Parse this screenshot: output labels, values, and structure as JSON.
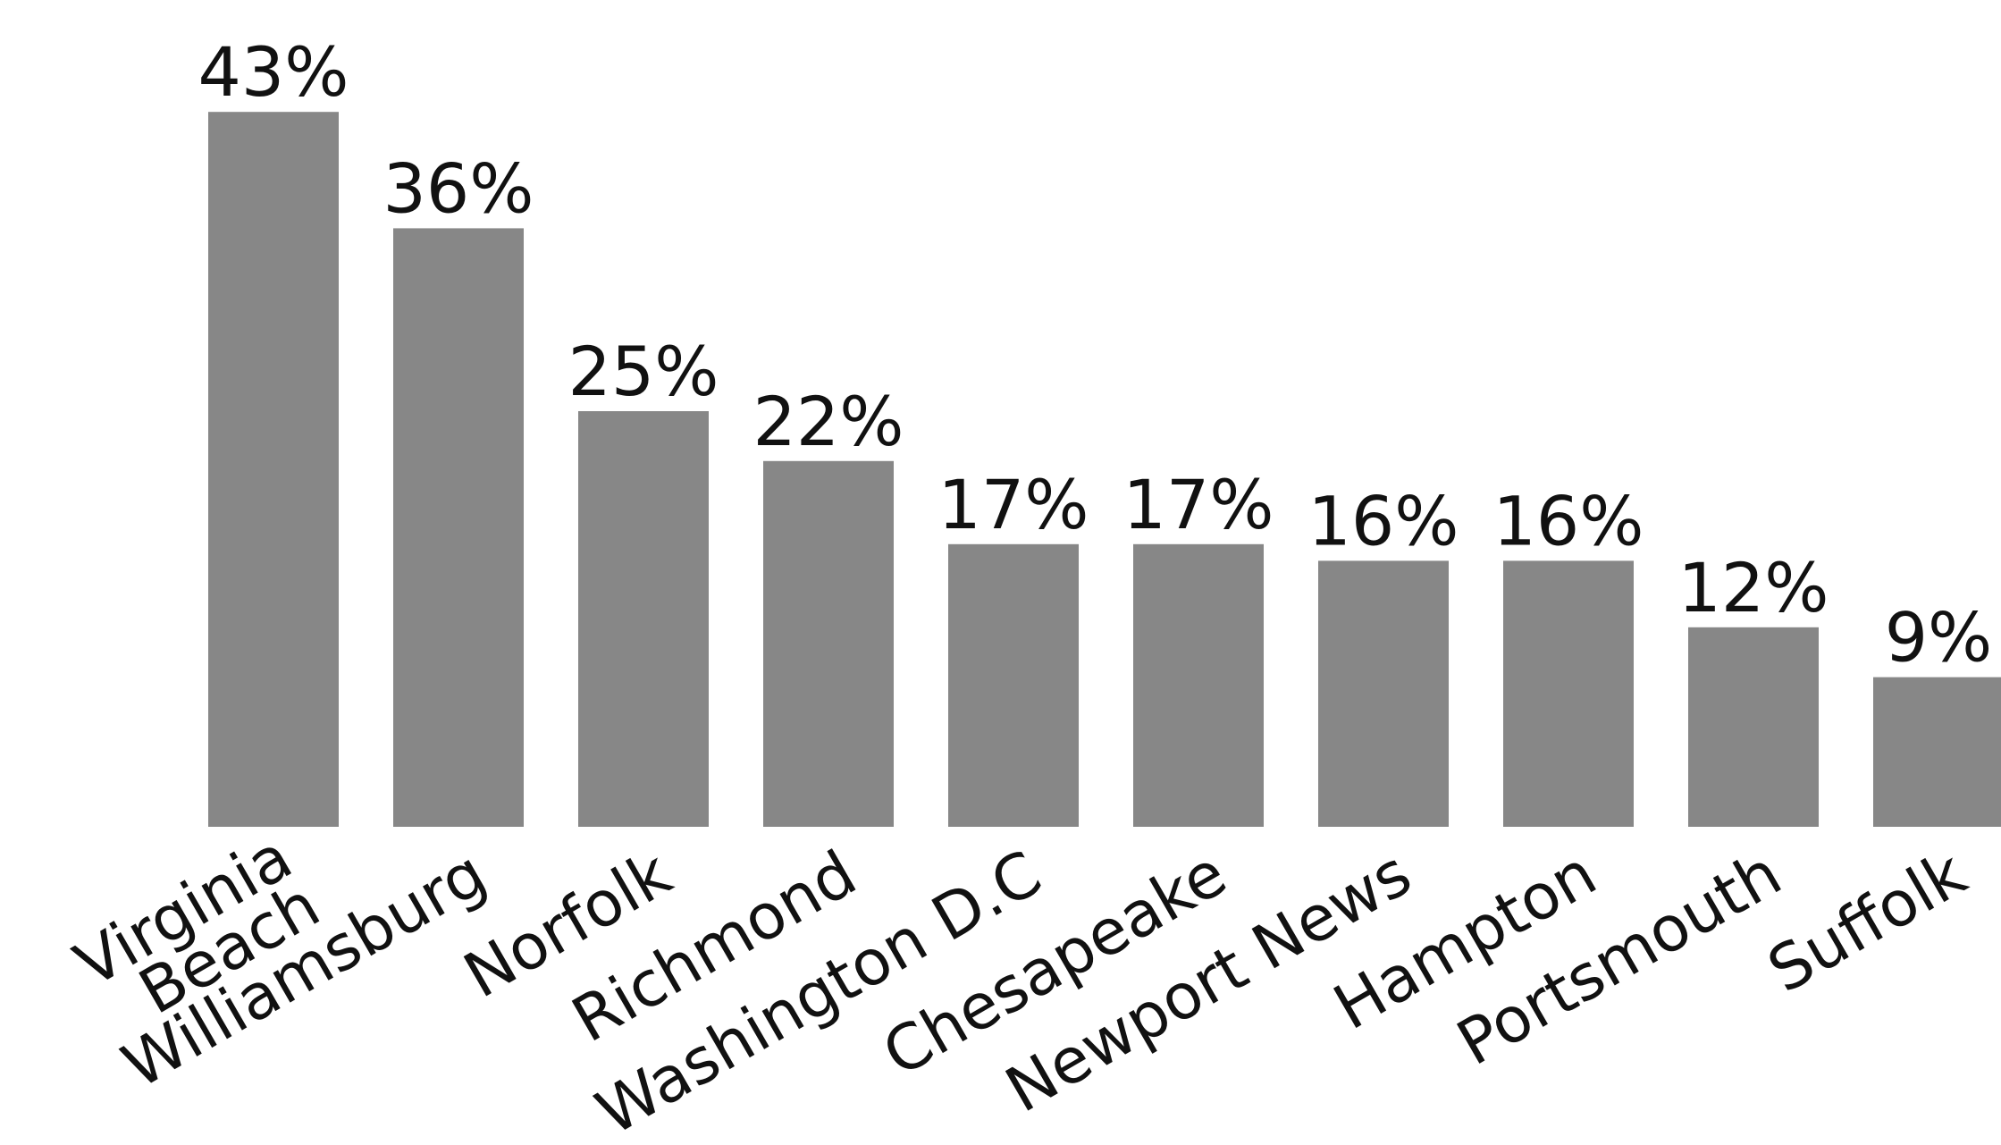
{
  "chart_data": {
    "type": "bar",
    "categories": [
      "Virginia Beach",
      "Williamsburg",
      "Norfolk",
      "Richmond",
      "Washington D.C",
      "Chesapeake",
      "Newport News",
      "Hampton",
      "Portsmouth",
      "Suffolk"
    ],
    "values": [
      43,
      36,
      25,
      22,
      17,
      17,
      16,
      16,
      12,
      9
    ],
    "value_labels": [
      "43%",
      "36%",
      "25%",
      "22%",
      "17%",
      "17%",
      "16%",
      "16%",
      "12%",
      "9%"
    ],
    "color": "#878787"
  }
}
